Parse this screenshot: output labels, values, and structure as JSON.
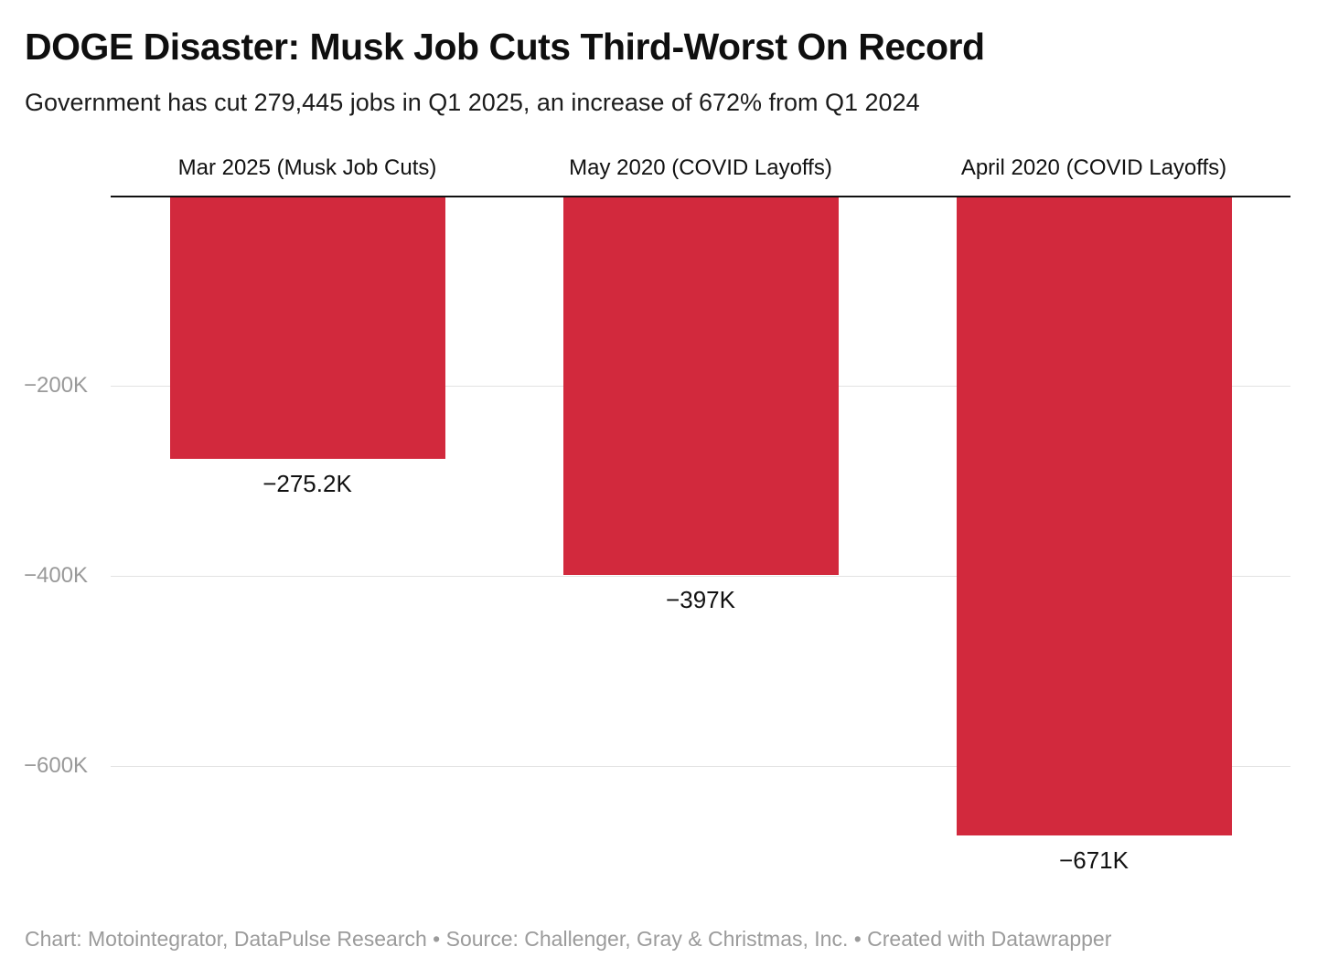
{
  "header": {
    "title": "DOGE Disaster: Musk Job Cuts Third-Worst On Record",
    "subtitle": "Government has cut 279,445 jobs in Q1 2025, an increase of 672% from Q1 2024"
  },
  "footer": {
    "text": "Chart: Motointegrator, DataPulse Research • Source: Challenger, Gray & Christmas, Inc. • Created with Datawrapper"
  },
  "colors": {
    "bar": "#d2293d",
    "gridline": "#e2e2e2",
    "baseline": "#111111",
    "tick_text": "#999999"
  },
  "chart_data": {
    "type": "bar",
    "orientation": "vertical-negative",
    "categories": [
      "Mar 2025 (Musk Job Cuts)",
      "May 2020 (COVID Layoffs)",
      "April 2020 (COVID Layoffs)"
    ],
    "values": [
      -275.2,
      -397,
      -671
    ],
    "value_labels": [
      "−275.2K",
      "−397K",
      "−671K"
    ],
    "unit": "thousands of jobs",
    "ylim": [
      0,
      -700
    ],
    "yticks": [
      -200,
      -400,
      -600
    ],
    "ytick_labels": [
      "−200K",
      "−400K",
      "−600K"
    ],
    "grid": true,
    "legend": false,
    "title": "DOGE Disaster: Musk Job Cuts Third-Worst On Record",
    "xlabel": "",
    "ylabel": ""
  }
}
